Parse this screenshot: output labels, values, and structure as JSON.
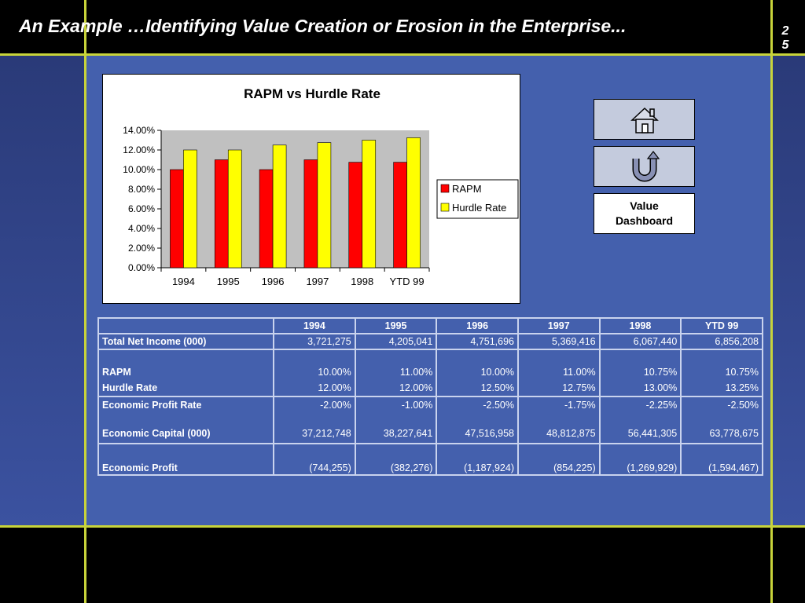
{
  "header": {
    "title": "An Example …Identifying Value Creation or Erosion in the Enterprise...",
    "slide_number": "2\n5"
  },
  "nav": {
    "home_icon": "home-icon",
    "back_icon": "u-turn-icon",
    "dashboard_line1": "Value",
    "dashboard_line2": "Dashboard"
  },
  "colors": {
    "rapm": "#ff0000",
    "hurdle": "#ffff00",
    "plot_bg": "#c0c0c0",
    "panel": "#4460ad",
    "frame": "#c8d43a"
  },
  "chart_data": {
    "type": "bar",
    "title": "RAPM vs Hurdle Rate",
    "categories": [
      "1994",
      "1995",
      "1996",
      "1997",
      "1998",
      "YTD 99"
    ],
    "series": [
      {
        "name": "RAPM",
        "values": [
          10.0,
          11.0,
          10.0,
          11.0,
          10.75,
          10.75
        ]
      },
      {
        "name": "Hurdle Rate",
        "values": [
          12.0,
          12.0,
          12.5,
          12.75,
          13.0,
          13.25
        ]
      }
    ],
    "ylim": [
      0,
      14
    ],
    "yticks": [
      "0.00%",
      "2.00%",
      "4.00%",
      "6.00%",
      "8.00%",
      "10.00%",
      "12.00%",
      "14.00%"
    ],
    "legend": "right",
    "grid": false
  },
  "table": {
    "headers": [
      "1994",
      "1995",
      "1996",
      "1997",
      "1998",
      "YTD 99"
    ],
    "rows": {
      "net_income": {
        "label": "Total Net Income (000)",
        "values": [
          "3,721,275",
          "4,205,041",
          "4,751,696",
          "5,369,416",
          "6,067,440",
          "6,856,208"
        ]
      },
      "rapm": {
        "label": "RAPM",
        "values": [
          "10.00%",
          "11.00%",
          "10.00%",
          "11.00%",
          "10.75%",
          "10.75%"
        ]
      },
      "hurdle": {
        "label": "Hurdle Rate",
        "values": [
          "12.00%",
          "12.00%",
          "12.50%",
          "12.75%",
          "13.00%",
          "13.25%"
        ]
      },
      "ep_rate": {
        "label": "Economic Profit Rate",
        "values": [
          "-2.00%",
          "-1.00%",
          "-2.50%",
          "-1.75%",
          "-2.25%",
          "-2.50%"
        ]
      },
      "econ_capital": {
        "label": "Economic Capital (000)",
        "values": [
          "37,212,748",
          "38,227,641",
          "47,516,958",
          "48,812,875",
          "56,441,305",
          "63,778,675"
        ]
      },
      "econ_profit": {
        "label": "Economic Profit",
        "values": [
          "(744,255)",
          "(382,276)",
          "(1,187,924)",
          "(854,225)",
          "(1,269,929)",
          "(1,594,467)"
        ]
      }
    }
  }
}
